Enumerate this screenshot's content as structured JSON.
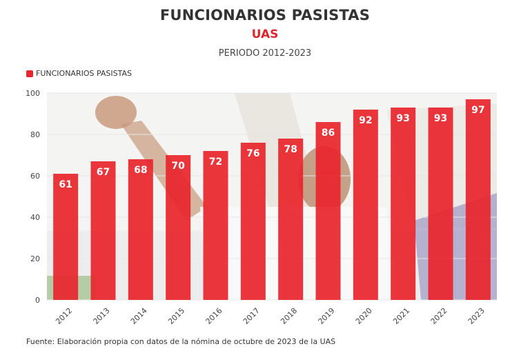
{
  "header": {
    "title": "FUNCIONARIOS PASISTAS",
    "subtitle": "UAS",
    "period": "PERIODO 2012-2023"
  },
  "legend": {
    "label": "FUNCIONARIOS PASISTAS"
  },
  "source": "Fuente: Elaboración propia con datos de la nómina de octubre de 2023 de la UAS",
  "colors": {
    "bar": "#e8262d",
    "grid": "#e6e6e6",
    "subtitle": "#e0262c"
  },
  "chart_data": {
    "type": "bar",
    "title": "FUNCIONARIOS PASISTAS",
    "categories": [
      "2012",
      "2013",
      "2014",
      "2015",
      "2016",
      "2017",
      "2018",
      "2019",
      "2020",
      "2021",
      "2022",
      "2023"
    ],
    "series": [
      {
        "name": "FUNCIONARIOS PASISTAS",
        "values": [
          61,
          67,
          68,
          70,
          72,
          76,
          78,
          86,
          92,
          93,
          93,
          97
        ]
      }
    ],
    "yticks": [
      "0",
      "20",
      "40",
      "60",
      "80",
      "100"
    ],
    "ylim": [
      0,
      100
    ],
    "grid": true,
    "legend_position": "top-left",
    "data_labels": true
  }
}
